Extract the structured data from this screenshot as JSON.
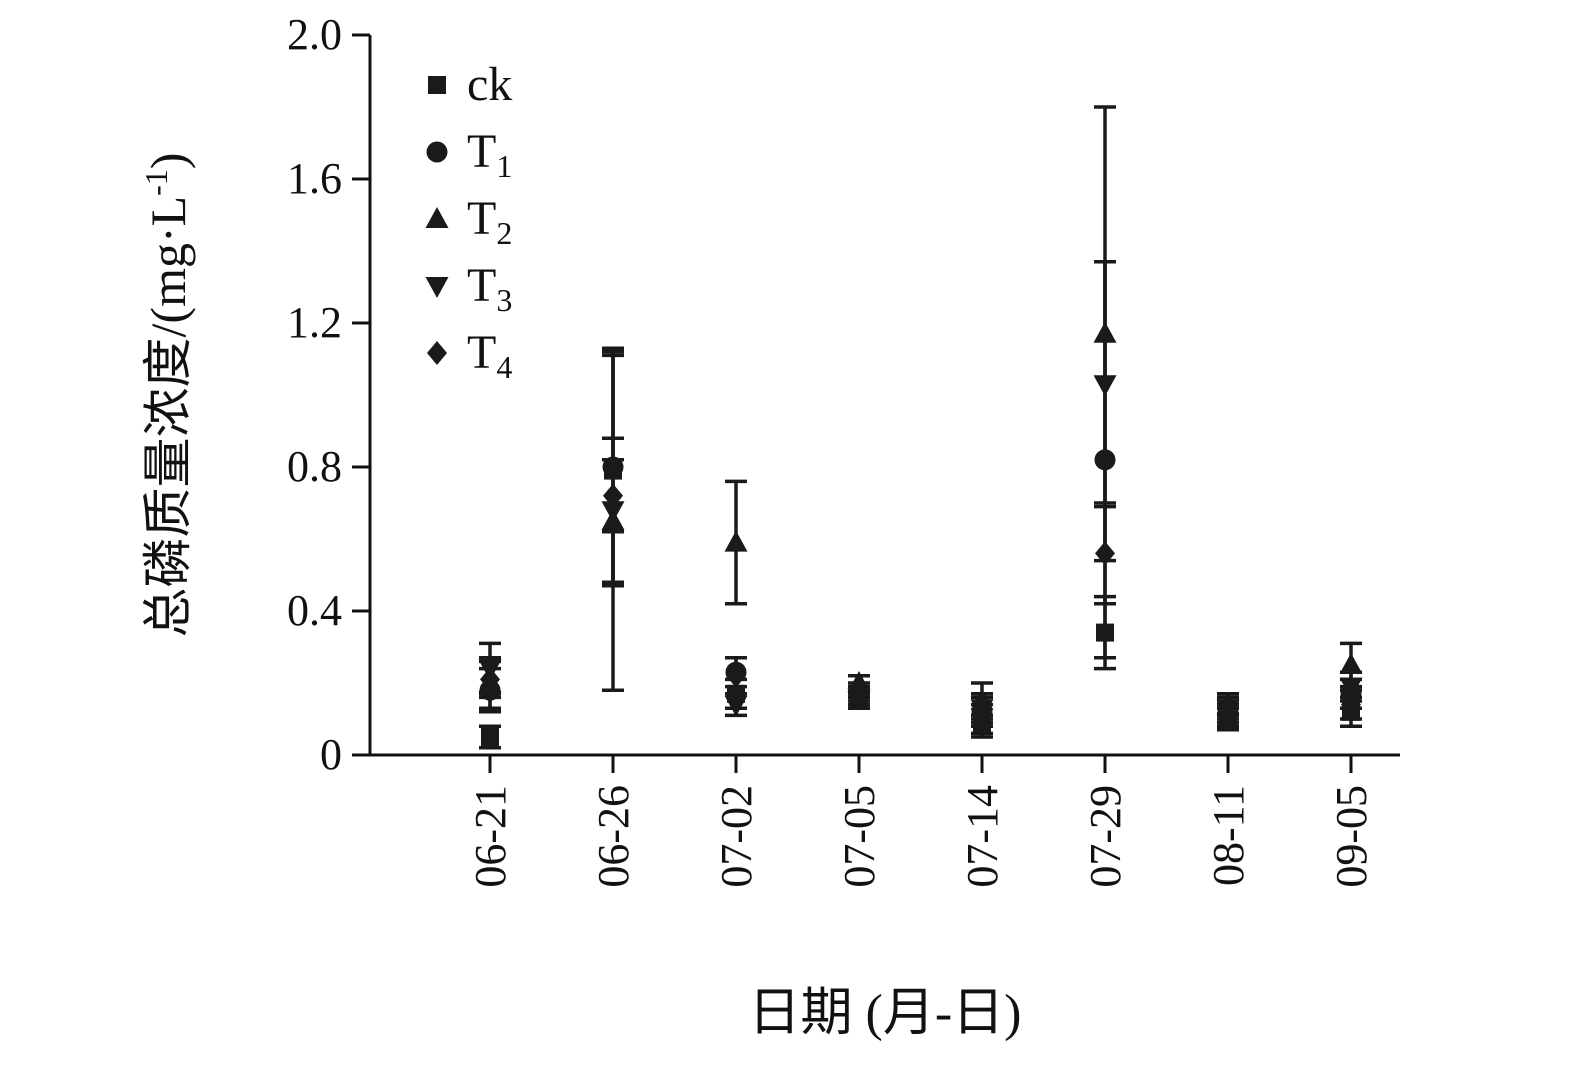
{
  "chart_data": {
    "type": "scatter",
    "title": "",
    "xlabel": "日期 (月-日)",
    "ylabel": "总磷质量浓度/(mg·L⁻¹)",
    "ylabel_parts": {
      "pre": "总磷质量浓度/(mg·L",
      "sup": "-1",
      "post": ")"
    },
    "categories": [
      "06-21",
      "06-26",
      "07-02",
      "07-05",
      "07-14",
      "07-29",
      "08-11",
      "09-05"
    ],
    "ylim": [
      0,
      2.0
    ],
    "yticks": [
      0,
      0.4,
      0.8,
      1.2,
      1.6,
      2.0
    ],
    "ytick_labels": [
      "0",
      "0.4",
      "0.8",
      "1.2",
      "1.6",
      "2.0"
    ],
    "grid": false,
    "legend_position": "top-left",
    "marker_color": "#1a1a1a",
    "series": [
      {
        "name": "ck",
        "label_main": "ck",
        "label_sub": "",
        "marker": "square",
        "values": [
          0.05,
          0.79,
          0.17,
          0.15,
          0.08,
          0.34,
          0.1,
          0.12
        ],
        "errors": [
          0.03,
          0.32,
          0.04,
          0.02,
          0.03,
          0.1,
          0.03,
          0.04
        ]
      },
      {
        "name": "T1",
        "label_main": "T",
        "label_sub": "1",
        "marker": "circle",
        "values": [
          0.18,
          0.8,
          0.23,
          0.17,
          0.12,
          0.82,
          0.12,
          0.17
        ],
        "errors": [
          0.06,
          0.33,
          0.04,
          0.02,
          0.04,
          0.55,
          0.03,
          0.04
        ]
      },
      {
        "name": "T2",
        "label_main": "T",
        "label_sub": "2",
        "marker": "triangle-up",
        "values": [
          0.2,
          0.65,
          0.59,
          0.2,
          0.15,
          1.17,
          0.14,
          0.25
        ],
        "errors": [
          0.07,
          0.47,
          0.17,
          0.02,
          0.05,
          0.63,
          0.03,
          0.06
        ]
      },
      {
        "name": "T3",
        "label_main": "T",
        "label_sub": "3",
        "marker": "triangle-down",
        "values": [
          0.24,
          0.68,
          0.14,
          0.16,
          0.13,
          1.03,
          0.13,
          0.19
        ],
        "errors": [
          0.07,
          0.2,
          0.03,
          0.02,
          0.04,
          0.34,
          0.03,
          0.04
        ]
      },
      {
        "name": "T4",
        "label_main": "T",
        "label_sub": "4",
        "marker": "diamond",
        "values": [
          0.21,
          0.72,
          0.22,
          0.18,
          0.1,
          0.56,
          0.11,
          0.14
        ],
        "errors": [
          0.05,
          0.1,
          0.05,
          0.02,
          0.04,
          0.14,
          0.03,
          0.04
        ]
      }
    ]
  }
}
